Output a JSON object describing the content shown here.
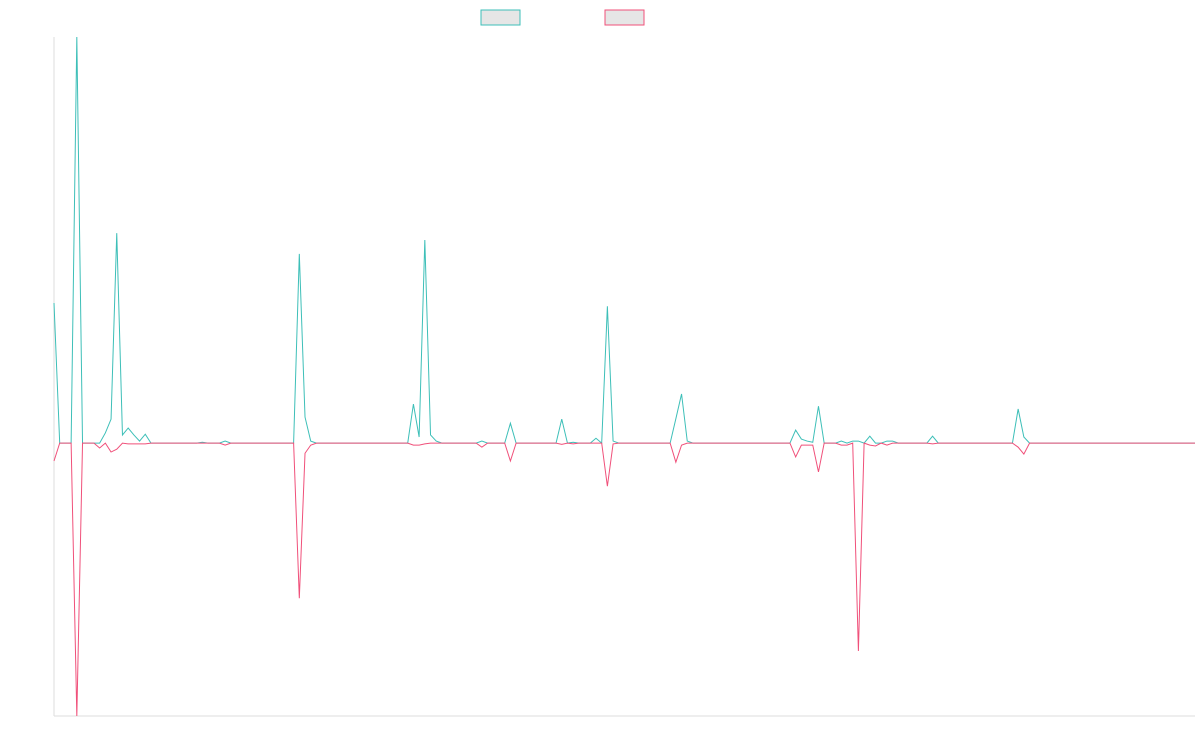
{
  "chart_data": {
    "type": "line",
    "ylim": [
      -67.2,
      100
    ],
    "series": [
      {
        "color": "#3dbfb8",
        "values": [
          34.5,
          0,
          0,
          0,
          100,
          0,
          0,
          0,
          0,
          2.5,
          5.9,
          51.7,
          2,
          3.7,
          2,
          0.5,
          2.2,
          0,
          0,
          0,
          0,
          0,
          0,
          0,
          0,
          0,
          0.2,
          0,
          0,
          0,
          0.5,
          0,
          0,
          0,
          0,
          0,
          0,
          0,
          0,
          0,
          0,
          0,
          0,
          46.6,
          6.4,
          0.5,
          0,
          0,
          0,
          0,
          0,
          0,
          0,
          0,
          0,
          0,
          0,
          0,
          0,
          0,
          0,
          0,
          0,
          9.6,
          1.5,
          50,
          2,
          0.5,
          0,
          0,
          0,
          0,
          0,
          0,
          0,
          0.5,
          0,
          0,
          0,
          0,
          4.9,
          0,
          0,
          0,
          0,
          0,
          0,
          0,
          0,
          5.9,
          0,
          0.2,
          0,
          0,
          0,
          1.2,
          0,
          33.7,
          0.5,
          0,
          0,
          0,
          0,
          0,
          0,
          0,
          0,
          0,
          0,
          6,
          12.1,
          0.5,
          0,
          0,
          0,
          0,
          0,
          0,
          0,
          0,
          0,
          0,
          0,
          0,
          0,
          0,
          0,
          0,
          0,
          0,
          3.2,
          1,
          0.5,
          0.2,
          9.1,
          0,
          0,
          0,
          0.5,
          0,
          0.5,
          0.5,
          0,
          1.7,
          0,
          0,
          0.5,
          0.5,
          0,
          0,
          0,
          0,
          0,
          0,
          1.7,
          0,
          0,
          0,
          0,
          0,
          0,
          0,
          0,
          0,
          0,
          0,
          0,
          0,
          0,
          8.4,
          1.5,
          0,
          0,
          0,
          0,
          0,
          0,
          0,
          0,
          0,
          0,
          0,
          0,
          0,
          0,
          0,
          0,
          0,
          0,
          0,
          0,
          0,
          0,
          0,
          0,
          0,
          0,
          0,
          0,
          0,
          0
        ]
      },
      {
        "color": "#f0507a",
        "values": [
          -4.4,
          0,
          0,
          0,
          -67.2,
          0,
          0,
          0,
          -1.2,
          0,
          -2.2,
          -1.5,
          0,
          -0.2,
          -0.2,
          -0.2,
          -0.2,
          0,
          0,
          0,
          0,
          0,
          0,
          0,
          0,
          0,
          0,
          0,
          0,
          0,
          -0.5,
          0,
          0,
          0,
          0,
          0,
          0,
          0,
          0,
          0,
          0,
          0,
          0,
          -38.2,
          -2.5,
          -0.5,
          0,
          0,
          0,
          0,
          0,
          0,
          0,
          0,
          0,
          0,
          0,
          0,
          0,
          0,
          0,
          0,
          0,
          -0.5,
          -0.5,
          -0.2,
          0,
          0,
          0,
          0,
          0,
          0,
          0,
          0,
          0,
          -1,
          0,
          0,
          0,
          0,
          -4.4,
          0,
          0,
          0,
          0,
          0,
          0,
          0,
          0,
          -0.3,
          0,
          -0.2,
          0,
          0,
          0,
          0,
          0,
          -10.6,
          -0.2,
          0,
          0,
          0,
          0,
          0,
          0,
          0,
          0,
          0,
          0,
          -4.7,
          -0.5,
          0,
          0,
          0,
          0,
          0,
          0,
          0,
          0,
          0,
          0,
          0,
          0,
          0,
          0,
          0,
          0,
          0,
          0,
          0,
          -3.4,
          -0.5,
          -0.5,
          -0.5,
          -7.1,
          0,
          0,
          0,
          -0.5,
          -0.5,
          0,
          -51.2,
          0,
          -0.5,
          -0.7,
          0,
          -0.5,
          0,
          0,
          0,
          0,
          0,
          0,
          0,
          -0.2,
          0,
          0,
          0,
          0,
          0,
          0,
          0,
          0,
          0,
          0,
          0,
          0,
          0,
          0,
          -1,
          -2.7,
          0,
          0,
          0,
          0,
          0,
          0,
          0,
          0,
          0,
          0,
          0,
          0,
          0,
          0,
          0,
          0,
          0,
          0,
          0,
          0,
          0,
          0,
          0,
          0,
          0,
          0,
          0,
          0,
          0,
          0
        ]
      }
    ]
  }
}
